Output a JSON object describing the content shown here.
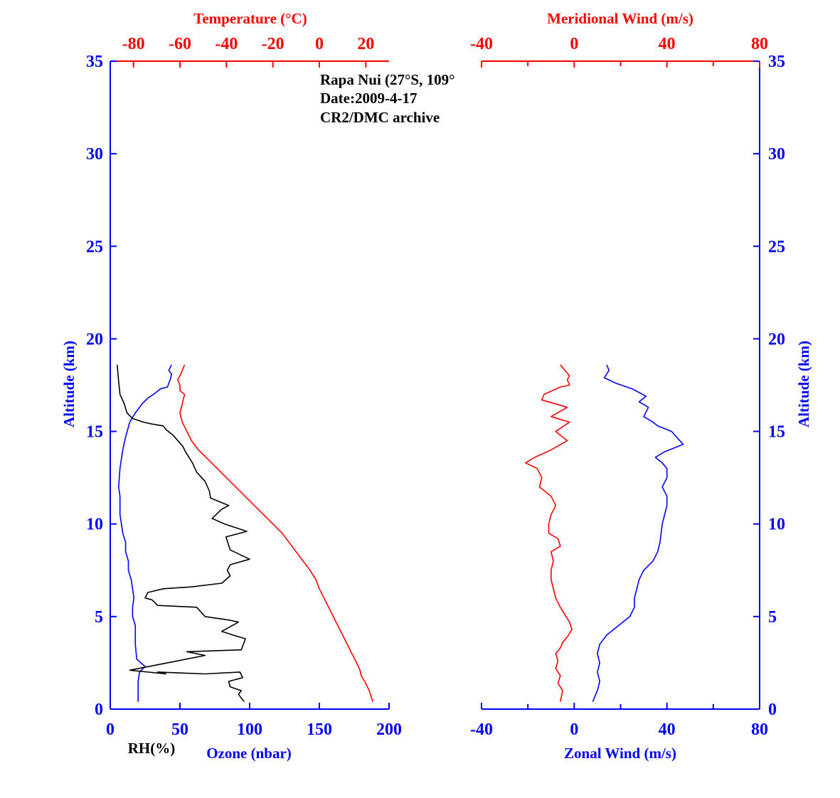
{
  "annotation": {
    "line1": "Rapa Nui (27°S, 109°",
    "line2": "Date:2009-4-17",
    "line3": "CR2/DMC archive"
  },
  "colors": {
    "blue": "#0000ff",
    "red": "#ff0000",
    "black": "#000000"
  },
  "chart_data": [
    {
      "type": "line",
      "panel": "left",
      "x_bottom": {
        "label_rh": "RH(%)",
        "label_ozone": "Ozone (nbar)",
        "range": [
          0,
          200
        ],
        "ticks": [
          0,
          50,
          100,
          150,
          200
        ]
      },
      "x_top": {
        "label": "Temperature (°C)",
        "range": [
          -90,
          30
        ],
        "ticks": [
          -80,
          -60,
          -40,
          -20,
          0,
          20
        ]
      },
      "y": {
        "label": "Altitude (km)",
        "range": [
          0,
          35
        ],
        "ticks": [
          0,
          5,
          10,
          15,
          20,
          25,
          30,
          35
        ]
      },
      "series": [
        {
          "name": "Temperature",
          "axis": "top",
          "color": "#ff0000",
          "x": [
            23,
            21.5,
            19.5,
            18,
            17.5,
            16,
            14,
            12,
            10,
            8,
            6,
            4,
            2,
            0,
            -1.5,
            -4,
            -7,
            -10,
            -13,
            -16,
            -20,
            -24,
            -28,
            -32,
            -36,
            -40,
            -44,
            -48,
            -52,
            -55,
            -57,
            -59,
            -60,
            -59,
            -58,
            -60,
            -60,
            -61,
            -60,
            -59,
            -58
          ],
          "y": [
            0.4,
            1,
            1.5,
            1.8,
            2.1,
            2.5,
            3,
            3.5,
            4,
            4.5,
            5,
            5.5,
            6,
            6.5,
            7,
            7.5,
            8,
            8.5,
            9,
            9.5,
            10,
            10.5,
            11,
            11.5,
            12,
            12.5,
            13,
            13.5,
            14,
            14.5,
            15,
            15.5,
            16,
            16.5,
            17,
            17.2,
            17.5,
            17.8,
            18,
            18.3,
            18.6
          ]
        },
        {
          "name": "Ozone",
          "axis": "bottom",
          "color": "#0000ff",
          "x": [
            20,
            20,
            20,
            21,
            25,
            19,
            18,
            18,
            16,
            16,
            17,
            16,
            15,
            13,
            13,
            11,
            11,
            9,
            8,
            7,
            7,
            7,
            6,
            7,
            9,
            11,
            14,
            18,
            23,
            27,
            31,
            36,
            41,
            43,
            44,
            42,
            44
          ],
          "y": [
            0.4,
            1,
            1.5,
            2,
            2.3,
            2.7,
            3.5,
            4.5,
            5,
            5.5,
            6,
            6.5,
            7,
            7.5,
            8,
            8.5,
            9,
            9.5,
            10,
            10.5,
            11,
            11.5,
            12,
            13,
            14,
            14.7,
            15.5,
            16,
            16.5,
            16.8,
            17,
            17.3,
            17.4,
            17.8,
            18.1,
            18.3,
            18.6
          ]
        },
        {
          "name": "RH",
          "axis": "bottom",
          "color": "#000000",
          "x": [
            96,
            92,
            94,
            86,
            85,
            95,
            93,
            68,
            34,
            40,
            14,
            48,
            68,
            55,
            94,
            97,
            88,
            80,
            92,
            86,
            68,
            62,
            34,
            30,
            25,
            27,
            38,
            58,
            80,
            86,
            84,
            86,
            100,
            86,
            83,
            98,
            82,
            73,
            80,
            85,
            72,
            71,
            68,
            62,
            59,
            54,
            52,
            45,
            40,
            38,
            30,
            24,
            16,
            12,
            10,
            7,
            6,
            5
          ],
          "y": [
            0.4,
            0.8,
            1.0,
            1.2,
            1.5,
            1.7,
            2.0,
            1.9,
            2.0,
            1.9,
            2.1,
            2.6,
            2.9,
            3.1,
            3.2,
            3.8,
            4.0,
            4.2,
            4.7,
            4.8,
            5.0,
            5.5,
            5.6,
            5.9,
            6.0,
            6.3,
            6.5,
            6.6,
            6.8,
            7.2,
            7.5,
            7.8,
            8.1,
            8.6,
            9.3,
            9.6,
            10.0,
            10.3,
            10.8,
            11.0,
            11.4,
            11.8,
            12.3,
            12.8,
            13.3,
            13.9,
            14.2,
            14.8,
            15.1,
            15.3,
            15.4,
            15.5,
            15.7,
            16.0,
            16.5,
            17.0,
            17.7,
            18.6
          ]
        }
      ]
    },
    {
      "type": "line",
      "panel": "right",
      "x_bottom": {
        "label": "Zonal Wind (m/s)",
        "range": [
          -40,
          80
        ],
        "ticks": [
          -40,
          0,
          40,
          80
        ]
      },
      "x_top": {
        "label": "Meridional Wind (m/s)",
        "range": [
          -40,
          80
        ],
        "ticks": [
          -40,
          0,
          40,
          80
        ]
      },
      "y": {
        "label": "Altitude (km)",
        "range": [
          0,
          35
        ],
        "ticks": [
          0,
          5,
          10,
          15,
          20,
          25,
          30,
          35
        ]
      },
      "series": [
        {
          "name": "Meridional Wind",
          "axis": "top",
          "color": "#ff0000",
          "x": [
            -6,
            -5,
            -7,
            -6,
            -8,
            -7,
            -8,
            -6,
            -5,
            -3,
            -1,
            -2,
            -4,
            -6,
            -8,
            -9,
            -10,
            -10,
            -9,
            -10,
            -6,
            -7,
            -11,
            -11,
            -10,
            -8,
            -10,
            -15,
            -14,
            -16,
            -21,
            -17,
            -10,
            -3,
            -8,
            -2,
            -10,
            -3,
            -14,
            -13,
            -6,
            -2,
            -3,
            -2,
            -4,
            -6
          ],
          "y": [
            0.4,
            1,
            1.4,
            1.8,
            2.2,
            2.6,
            3,
            3.3,
            3.6,
            3.9,
            4.3,
            4.7,
            5.1,
            5.5,
            6.0,
            6.5,
            7.0,
            7.5,
            8.0,
            8.5,
            8.8,
            9.2,
            9.5,
            10.0,
            10.5,
            11.0,
            11.5,
            12.0,
            12.5,
            13.0,
            13.3,
            13.6,
            14.0,
            14.5,
            15.0,
            15.5,
            15.8,
            16.3,
            16.7,
            17.0,
            17.4,
            17.5,
            17.8,
            18.0,
            18.3,
            18.6
          ]
        },
        {
          "name": "Zonal Wind",
          "axis": "bottom",
          "color": "#0000ff",
          "x": [
            8,
            10,
            11,
            10,
            11,
            10,
            11,
            14,
            19,
            24,
            26,
            26,
            27,
            28,
            30,
            34,
            36,
            37,
            38,
            40,
            40,
            38,
            40,
            40,
            38,
            35,
            39,
            47,
            42,
            36,
            34,
            30,
            32,
            28,
            31,
            25,
            18,
            13,
            15,
            14
          ],
          "y": [
            0.4,
            1,
            1.5,
            2,
            2.5,
            3,
            3.5,
            4,
            4.5,
            5,
            5.5,
            6,
            6.5,
            7,
            7.5,
            8,
            8.5,
            9,
            10,
            11,
            11.5,
            12,
            12.5,
            13,
            13.3,
            13.6,
            13.9,
            14.3,
            15.0,
            15.3,
            15.5,
            15.8,
            16.3,
            16.6,
            16.9,
            17.3,
            17.6,
            17.9,
            18.3,
            18.6
          ]
        }
      ]
    }
  ]
}
